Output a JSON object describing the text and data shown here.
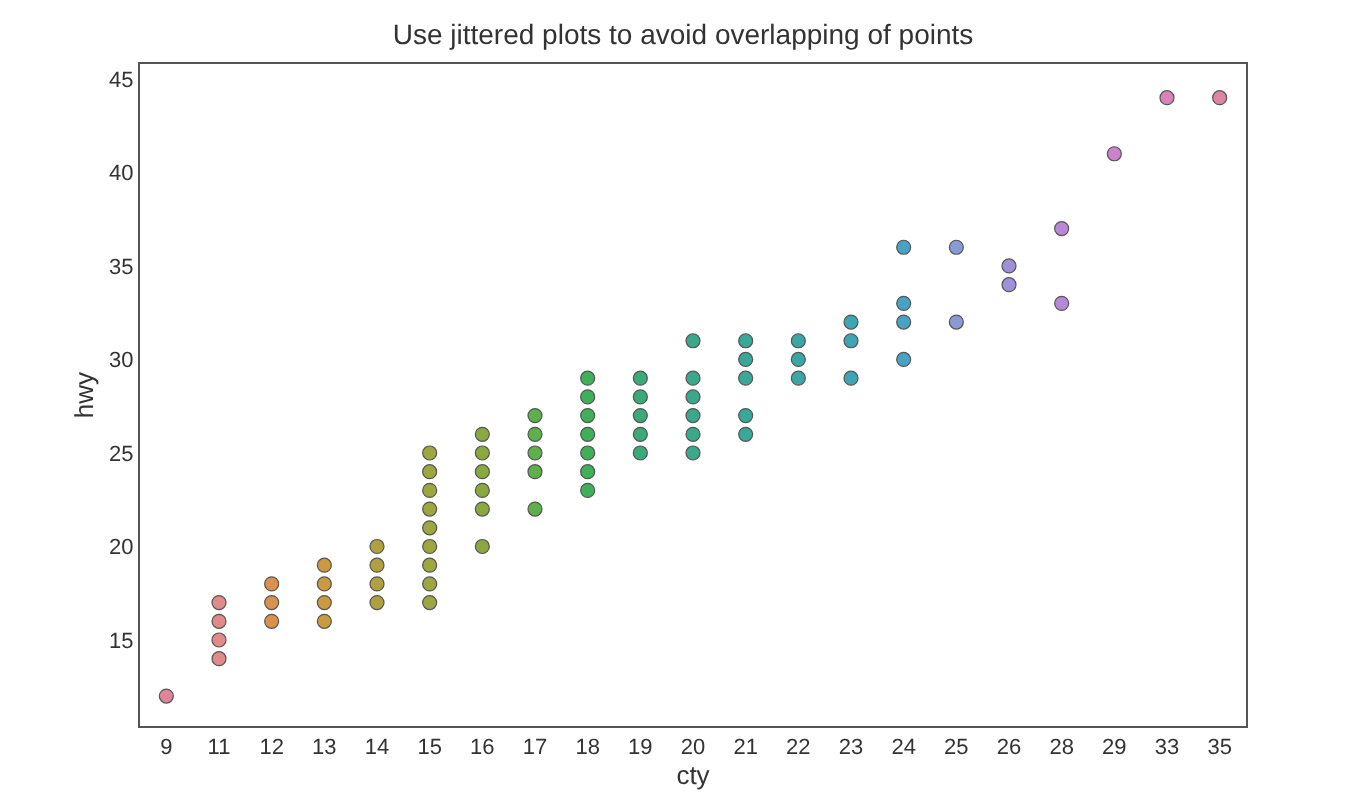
{
  "chart_data": {
    "type": "scatter",
    "title": "Use jittered plots to avoid overlapping of points",
    "xlabel": "cty",
    "ylabel": "hwy",
    "categories": [
      "9",
      "11",
      "12",
      "13",
      "14",
      "15",
      "16",
      "17",
      "18",
      "19",
      "20",
      "21",
      "22",
      "23",
      "24",
      "25",
      "26",
      "28",
      "29",
      "33",
      "35"
    ],
    "ylim": [
      10.4,
      45.8
    ],
    "yticks": [
      15,
      20,
      25,
      30,
      35,
      40,
      45
    ],
    "marker": "circle",
    "series": [
      {
        "x": [
          "9",
          "11",
          "11",
          "11",
          "11",
          "12",
          "12",
          "12",
          "13",
          "13",
          "13",
          "13",
          "14",
          "14",
          "14",
          "14",
          "15",
          "15",
          "15",
          "15",
          "15",
          "15",
          "15",
          "15",
          "15",
          "16",
          "16",
          "16",
          "16",
          "16",
          "16",
          "17",
          "17",
          "17",
          "17",
          "17",
          "18",
          "18",
          "18",
          "18",
          "18",
          "18",
          "18",
          "19",
          "19",
          "19",
          "19",
          "19",
          "20",
          "20",
          "20",
          "20",
          "20",
          "20",
          "21",
          "21",
          "21",
          "21",
          "21",
          "22",
          "22",
          "22",
          "23",
          "23",
          "23",
          "24",
          "24",
          "24",
          "24",
          "25",
          "25",
          "26",
          "26",
          "28",
          "28",
          "29",
          "33",
          "35"
        ],
        "values": [
          12,
          17,
          16,
          15,
          14,
          18,
          17,
          16,
          19,
          18,
          17,
          16,
          20,
          19,
          18,
          17,
          25,
          24,
          23,
          22,
          21,
          20,
          19,
          18,
          17,
          26,
          25,
          24,
          23,
          22,
          20,
          27,
          26,
          25,
          24,
          22,
          29,
          28,
          27,
          26,
          25,
          24,
          23,
          29,
          28,
          27,
          26,
          25,
          31,
          29,
          28,
          27,
          26,
          25,
          31,
          30,
          29,
          27,
          26,
          31,
          30,
          29,
          32,
          31,
          29,
          36,
          33,
          32,
          30,
          36,
          32,
          35,
          34,
          37,
          33,
          41,
          44,
          44
        ],
        "colors": [
          "#e0849a",
          "#e08a8a",
          "#e08a8a",
          "#e08a8a",
          "#e08a8a",
          "#d9924e",
          "#d9924e",
          "#d9924e",
          "#c99a3e",
          "#c99a3e",
          "#c99a3e",
          "#c99a3e",
          "#b0a03e",
          "#b0a03e",
          "#b0a03e",
          "#b0a03e",
          "#9ea63e",
          "#9ea63e",
          "#9ea63e",
          "#9ea63e",
          "#9ea63e",
          "#9ea63e",
          "#9ea63e",
          "#9ea63e",
          "#9ea63e",
          "#8aa83e",
          "#8aa83e",
          "#8aa83e",
          "#8aa83e",
          "#8aa83e",
          "#8aa83e",
          "#5db04a",
          "#5db04a",
          "#5db04a",
          "#5db04a",
          "#5db04a",
          "#3fb05a",
          "#3fb05a",
          "#3fb05a",
          "#3fb05a",
          "#3fb05a",
          "#3fb05a",
          "#3fb05a",
          "#3aaa78",
          "#3aaa78",
          "#3aaa78",
          "#3aaa78",
          "#3aaa78",
          "#3aa88a",
          "#3aa88a",
          "#3aa88a",
          "#3aa88a",
          "#3aa88a",
          "#3aa88a",
          "#38a898",
          "#38a898",
          "#38a898",
          "#38a898",
          "#38a898",
          "#3aa6a6",
          "#3aa6a6",
          "#3aa6a6",
          "#3ca6b4",
          "#3ca6b4",
          "#3ca6b4",
          "#48a2c4",
          "#48a2c4",
          "#48a2c4",
          "#48a2c4",
          "#8a9ad4",
          "#8a9ad4",
          "#a090d8",
          "#a090d8",
          "#b888d6",
          "#b888d6",
          "#cc82cc",
          "#d884b8",
          "#e084a4"
        ]
      }
    ]
  }
}
